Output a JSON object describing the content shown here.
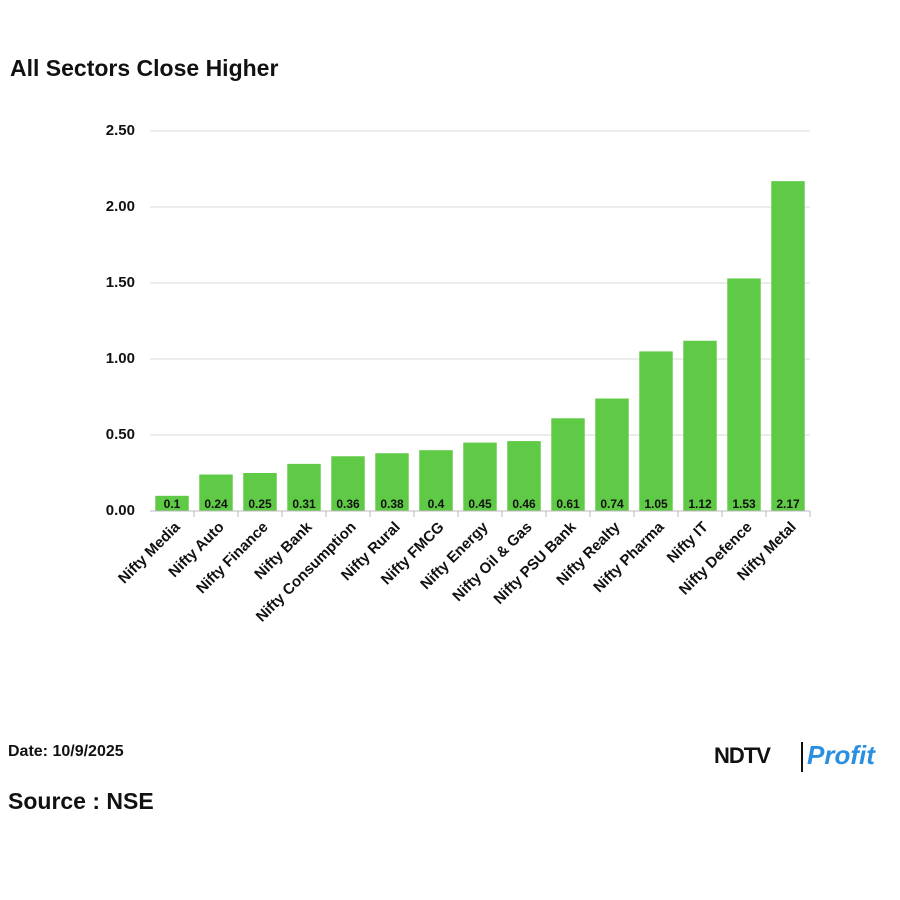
{
  "chart_data": {
    "type": "bar",
    "title": "All Sectors Close Higher",
    "categories": [
      "Nifty Media",
      "Nifty Auto",
      "Nifty Finance",
      "Nifty Bank",
      "Nifty Consumption",
      "Nifty Rural",
      "Nifty FMCG",
      "Nifty Energy",
      "Nifty Oil & Gas",
      "Nifty PSU Bank",
      "Nifty Realty",
      "Nifty Pharma",
      "Nifty IT",
      "Nifty Defence",
      "Nifty Metal"
    ],
    "values": [
      0.1,
      0.24,
      0.25,
      0.31,
      0.36,
      0.38,
      0.4,
      0.45,
      0.46,
      0.61,
      0.74,
      1.05,
      1.12,
      1.53,
      2.17
    ],
    "color": "#5fca45",
    "ylim": [
      0,
      2.5
    ],
    "yticks": [
      {
        "value": 0,
        "label": "0.00"
      },
      {
        "value": 0.5,
        "label": "0.50"
      },
      {
        "value": 1,
        "label": "1.00"
      },
      {
        "value": 1.5,
        "label": "1.50"
      },
      {
        "value": 2,
        "label": "2.00"
      },
      {
        "value": 2.5,
        "label": "2.50"
      }
    ],
    "grid": true
  },
  "footer": {
    "date": "Date: 10/9/2025",
    "source": "Source : NSE",
    "logo": {
      "brand": "NDTV",
      "product": "Profit"
    }
  }
}
